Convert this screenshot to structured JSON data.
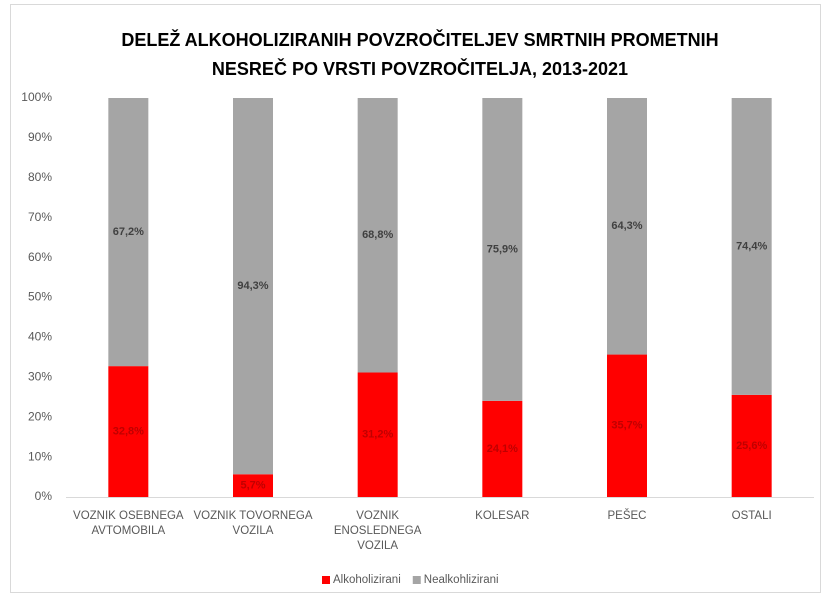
{
  "chart_data": {
    "type": "stacked_bar",
    "title": [
      "DELEŽ ALKOHOLIZIRANIH POVZROČITELJEV SMRTNIH PROMETNIH",
      "NESREČ PO VRSTI POVZROČITELJA,  2013-2021"
    ],
    "categories": [
      "VOZNIK OSEBNEGA AVTOMOBILA",
      "VOZNIK TOVORNEGA VOZILA",
      "VOZNIK ENOSLEDNEGA VOZILA",
      "KOLESAR",
      "PEŠEC",
      "OSTALI"
    ],
    "series": [
      {
        "name": "Alkoholizirani",
        "color": "#ff0000",
        "label_color": "#c00000",
        "values": [
          32.8,
          5.7,
          31.2,
          24.1,
          35.7,
          25.6
        ],
        "value_labels": [
          "32,8%",
          "5,7%",
          "31,2%",
          "24,1%",
          "35,7%",
          "25,6%"
        ]
      },
      {
        "name": "Nealkohlizirani",
        "color": "#a5a5a5",
        "label_color": "#404040",
        "values": [
          67.2,
          94.3,
          68.8,
          75.9,
          64.3,
          74.4
        ],
        "value_labels": [
          "67,2%",
          "94,3%",
          "68,8%",
          "75,9%",
          "64,3%",
          "74,4%"
        ]
      }
    ],
    "ylim": [
      0,
      100
    ],
    "yticks": [
      {
        "value": 0,
        "label": "0%"
      },
      {
        "value": 10,
        "label": "10%"
      },
      {
        "value": 20,
        "label": "20%"
      },
      {
        "value": 30,
        "label": "30%"
      },
      {
        "value": 40,
        "label": "40%"
      },
      {
        "value": 50,
        "label": "50%"
      },
      {
        "value": 60,
        "label": "60%"
      },
      {
        "value": 70,
        "label": "70%"
      },
      {
        "value": 80,
        "label": "80%"
      },
      {
        "value": 90,
        "label": "90%"
      },
      {
        "value": 100,
        "label": "100%"
      }
    ],
    "grid": false,
    "legend": "bottom"
  }
}
